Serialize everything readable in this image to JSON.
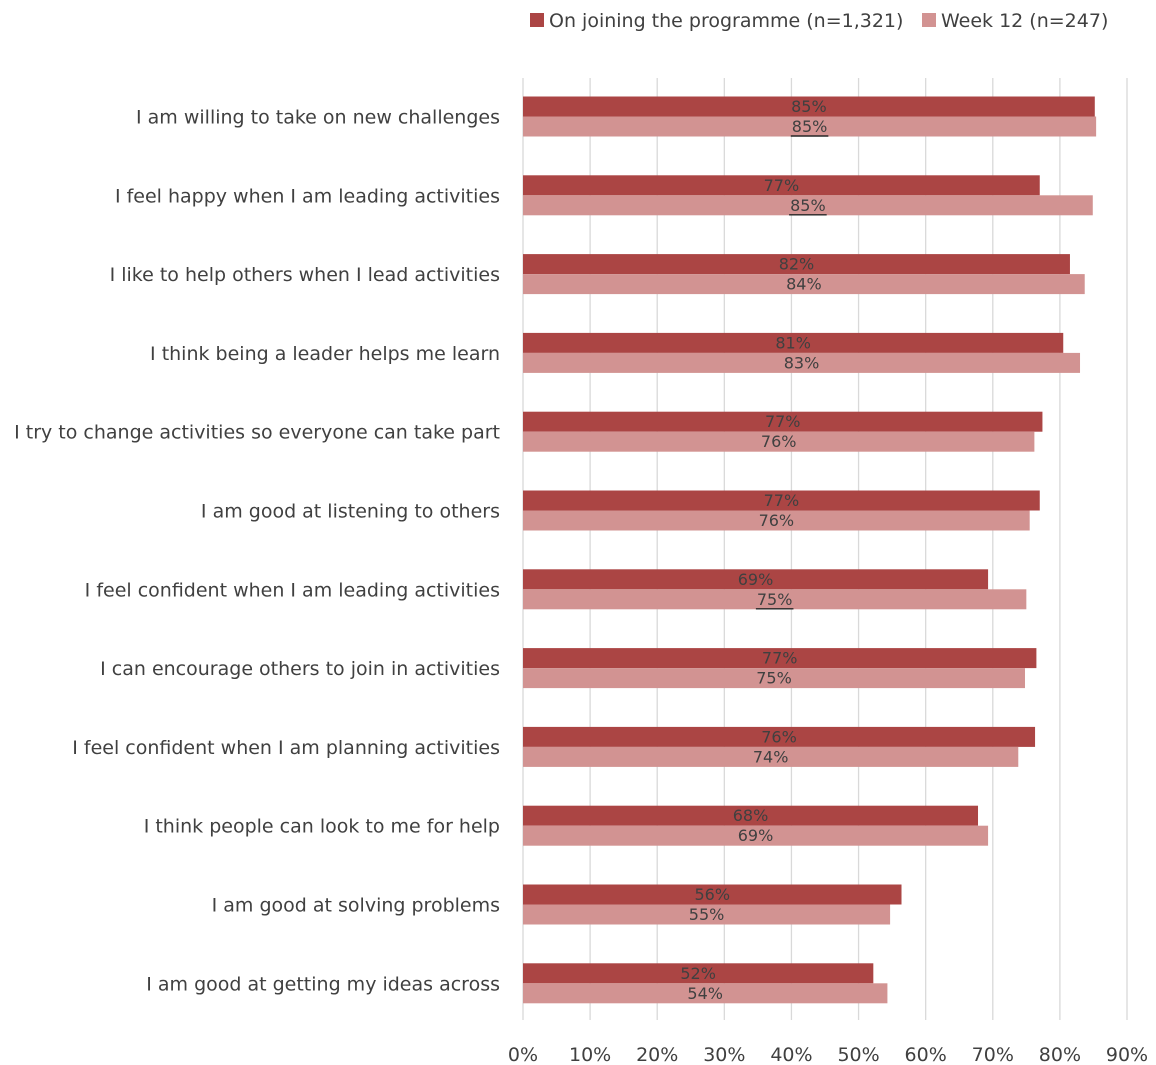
{
  "chart_data": {
    "type": "bar",
    "orientation": "horizontal",
    "categories": [
      "I am willing to take on new challenges",
      "I feel happy when I am leading activities",
      "I like to help others when I lead activities",
      "I think being a leader helps me learn",
      "I try to change activities so everyone can take part",
      "I am good at listening to others",
      "I feel confident when I am leading activities",
      "I can encourage others to join in activities",
      "I feel confident when I am planning activities",
      "I think people can look to me for help",
      "I am good at solving problems",
      "I am good at getting my ideas across"
    ],
    "series": [
      {
        "name": "On joining the programme (n=1,321)",
        "color": "#ab4544",
        "values": [
          85.2,
          77.0,
          81.5,
          80.5,
          77.4,
          77.0,
          69.3,
          76.5,
          76.3,
          67.8,
          56.4,
          52.2
        ],
        "labels": [
          "85%",
          "77%",
          "82%",
          "81%",
          "77%",
          "77%",
          "69%",
          "77%",
          "76%",
          "68%",
          "56%",
          "52%"
        ]
      },
      {
        "name": "Week 12 (n=247)",
        "color": "#d29392",
        "values": [
          85.4,
          84.9,
          83.7,
          83.0,
          76.2,
          75.5,
          75.0,
          74.8,
          73.8,
          69.3,
          54.7,
          54.3
        ],
        "labels": [
          "85%",
          "85%",
          "84%",
          "83%",
          "76%",
          "76%",
          "75%",
          "75%",
          "74%",
          "69%",
          "55%",
          "54%"
        ],
        "underlined": [
          true,
          true,
          false,
          false,
          false,
          false,
          true,
          false,
          false,
          false,
          false,
          false
        ]
      }
    ],
    "xlim": [
      0,
      90
    ],
    "x_ticks": [
      0,
      10,
      20,
      30,
      40,
      50,
      60,
      70,
      80,
      90
    ],
    "x_tick_labels": [
      "0%",
      "10%",
      "20%",
      "30%",
      "40%",
      "50%",
      "60%",
      "70%",
      "80%",
      "90%"
    ],
    "legend_position": "top-right",
    "grid": "vertical",
    "title": "",
    "xlabel": "",
    "ylabel": ""
  }
}
